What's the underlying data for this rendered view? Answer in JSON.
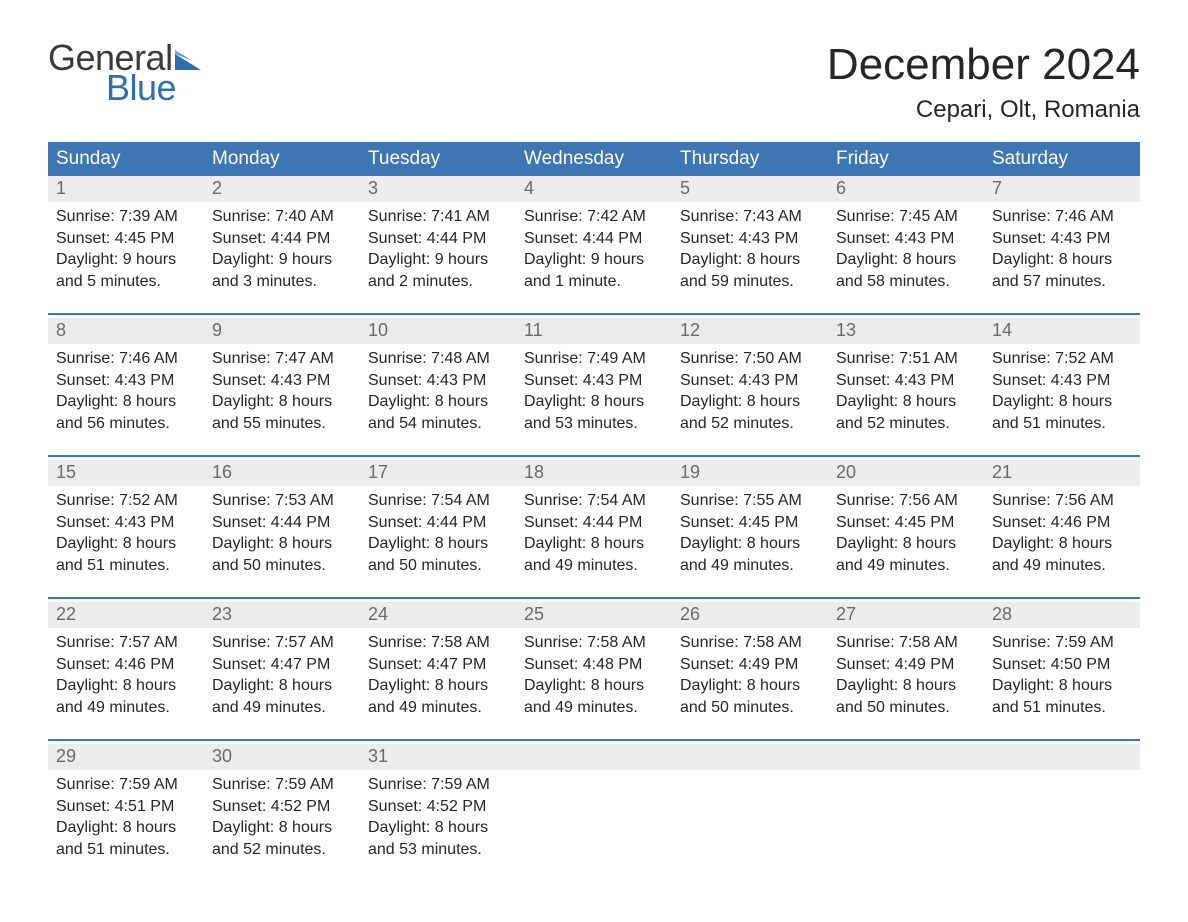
{
  "brand": {
    "general": "General",
    "blue": "Blue"
  },
  "title": "December 2024",
  "location": "Cepari, Olt, Romania",
  "colors": {
    "header_bg": "#3d76b3",
    "header_text": "#ffffff",
    "daynum_bg": "#ececec",
    "daynum_text": "#6a6a6a",
    "body_text": "#262626",
    "rule": "#3d76b3",
    "logo_blue": "#2f6fb0",
    "page_bg": "#ffffff"
  },
  "typography": {
    "title_fontsize": 44,
    "location_fontsize": 24,
    "header_fontsize": 19,
    "daynum_fontsize": 18,
    "body_fontsize": 16,
    "logo_fontsize": 36
  },
  "weekdays": [
    "Sunday",
    "Monday",
    "Tuesday",
    "Wednesday",
    "Thursday",
    "Friday",
    "Saturday"
  ],
  "labels": {
    "sunrise": "Sunrise:",
    "sunset": "Sunset:",
    "daylight": "Daylight:"
  },
  "weeks": [
    [
      {
        "n": "1",
        "sunrise": "7:39 AM",
        "sunset": "4:45 PM",
        "daylight": "9 hours and 5 minutes."
      },
      {
        "n": "2",
        "sunrise": "7:40 AM",
        "sunset": "4:44 PM",
        "daylight": "9 hours and 3 minutes."
      },
      {
        "n": "3",
        "sunrise": "7:41 AM",
        "sunset": "4:44 PM",
        "daylight": "9 hours and 2 minutes."
      },
      {
        "n": "4",
        "sunrise": "7:42 AM",
        "sunset": "4:44 PM",
        "daylight": "9 hours and 1 minute."
      },
      {
        "n": "5",
        "sunrise": "7:43 AM",
        "sunset": "4:43 PM",
        "daylight": "8 hours and 59 minutes."
      },
      {
        "n": "6",
        "sunrise": "7:45 AM",
        "sunset": "4:43 PM",
        "daylight": "8 hours and 58 minutes."
      },
      {
        "n": "7",
        "sunrise": "7:46 AM",
        "sunset": "4:43 PM",
        "daylight": "8 hours and 57 minutes."
      }
    ],
    [
      {
        "n": "8",
        "sunrise": "7:46 AM",
        "sunset": "4:43 PM",
        "daylight": "8 hours and 56 minutes."
      },
      {
        "n": "9",
        "sunrise": "7:47 AM",
        "sunset": "4:43 PM",
        "daylight": "8 hours and 55 minutes."
      },
      {
        "n": "10",
        "sunrise": "7:48 AM",
        "sunset": "4:43 PM",
        "daylight": "8 hours and 54 minutes."
      },
      {
        "n": "11",
        "sunrise": "7:49 AM",
        "sunset": "4:43 PM",
        "daylight": "8 hours and 53 minutes."
      },
      {
        "n": "12",
        "sunrise": "7:50 AM",
        "sunset": "4:43 PM",
        "daylight": "8 hours and 52 minutes."
      },
      {
        "n": "13",
        "sunrise": "7:51 AM",
        "sunset": "4:43 PM",
        "daylight": "8 hours and 52 minutes."
      },
      {
        "n": "14",
        "sunrise": "7:52 AM",
        "sunset": "4:43 PM",
        "daylight": "8 hours and 51 minutes."
      }
    ],
    [
      {
        "n": "15",
        "sunrise": "7:52 AM",
        "sunset": "4:43 PM",
        "daylight": "8 hours and 51 minutes."
      },
      {
        "n": "16",
        "sunrise": "7:53 AM",
        "sunset": "4:44 PM",
        "daylight": "8 hours and 50 minutes."
      },
      {
        "n": "17",
        "sunrise": "7:54 AM",
        "sunset": "4:44 PM",
        "daylight": "8 hours and 50 minutes."
      },
      {
        "n": "18",
        "sunrise": "7:54 AM",
        "sunset": "4:44 PM",
        "daylight": "8 hours and 49 minutes."
      },
      {
        "n": "19",
        "sunrise": "7:55 AM",
        "sunset": "4:45 PM",
        "daylight": "8 hours and 49 minutes."
      },
      {
        "n": "20",
        "sunrise": "7:56 AM",
        "sunset": "4:45 PM",
        "daylight": "8 hours and 49 minutes."
      },
      {
        "n": "21",
        "sunrise": "7:56 AM",
        "sunset": "4:46 PM",
        "daylight": "8 hours and 49 minutes."
      }
    ],
    [
      {
        "n": "22",
        "sunrise": "7:57 AM",
        "sunset": "4:46 PM",
        "daylight": "8 hours and 49 minutes."
      },
      {
        "n": "23",
        "sunrise": "7:57 AM",
        "sunset": "4:47 PM",
        "daylight": "8 hours and 49 minutes."
      },
      {
        "n": "24",
        "sunrise": "7:58 AM",
        "sunset": "4:47 PM",
        "daylight": "8 hours and 49 minutes."
      },
      {
        "n": "25",
        "sunrise": "7:58 AM",
        "sunset": "4:48 PM",
        "daylight": "8 hours and 49 minutes."
      },
      {
        "n": "26",
        "sunrise": "7:58 AM",
        "sunset": "4:49 PM",
        "daylight": "8 hours and 50 minutes."
      },
      {
        "n": "27",
        "sunrise": "7:58 AM",
        "sunset": "4:49 PM",
        "daylight": "8 hours and 50 minutes."
      },
      {
        "n": "28",
        "sunrise": "7:59 AM",
        "sunset": "4:50 PM",
        "daylight": "8 hours and 51 minutes."
      }
    ],
    [
      {
        "n": "29",
        "sunrise": "7:59 AM",
        "sunset": "4:51 PM",
        "daylight": "8 hours and 51 minutes."
      },
      {
        "n": "30",
        "sunrise": "7:59 AM",
        "sunset": "4:52 PM",
        "daylight": "8 hours and 52 minutes."
      },
      {
        "n": "31",
        "sunrise": "7:59 AM",
        "sunset": "4:52 PM",
        "daylight": "8 hours and 53 minutes."
      },
      null,
      null,
      null,
      null
    ]
  ]
}
